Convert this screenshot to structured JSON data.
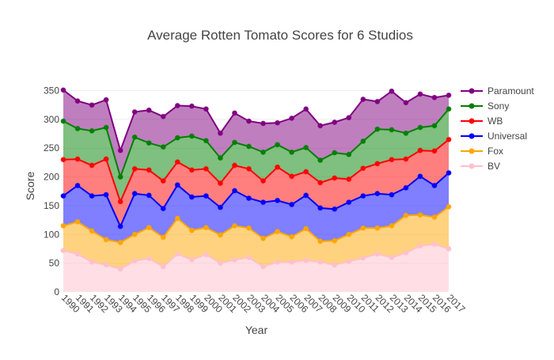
{
  "chart_data": {
    "type": "area",
    "stacked": true,
    "title": "Average Rotten Tomato Scores for 6 Studios",
    "xlabel": "Year",
    "ylabel": "Score",
    "ylim": [
      0,
      370
    ],
    "yticks": [
      0,
      50,
      100,
      150,
      200,
      250,
      300,
      350
    ],
    "grid": true,
    "legend_position": "right",
    "x": [
      "1990",
      "1991",
      "1992",
      "1993",
      "1994",
      "1995",
      "1996",
      "1997",
      "1998",
      "1999",
      "2000",
      "2001",
      "2002",
      "2003",
      "2004",
      "2005",
      "2006",
      "2007",
      "2008",
      "2009",
      "2010",
      "2011",
      "2012",
      "2013",
      "2014",
      "2015",
      "2016",
      "2017"
    ],
    "series": [
      {
        "name": "BV",
        "color": "#ffc0cb",
        "values": [
          72,
          66,
          52,
          47,
          40,
          54,
          58,
          44,
          66,
          56,
          65,
          50,
          56,
          60,
          44,
          52,
          52,
          55,
          52,
          47,
          53,
          59,
          66,
          60,
          68,
          80,
          83,
          75
        ]
      },
      {
        "name": "Fox",
        "color": "#ffa500",
        "values": [
          43,
          56,
          54,
          44,
          46,
          46,
          54,
          51,
          62,
          51,
          47,
          49,
          59,
          51,
          49,
          53,
          44,
          55,
          36,
          42,
          47,
          52,
          45,
          55,
          65,
          54,
          47,
          73
        ]
      },
      {
        "name": "Universal",
        "color": "#0000ff",
        "values": [
          52,
          63,
          61,
          78,
          28,
          71,
          56,
          50,
          58,
          58,
          55,
          48,
          61,
          52,
          63,
          54,
          56,
          58,
          58,
          55,
          56,
          56,
          60,
          54,
          48,
          67,
          55,
          59
        ]
      },
      {
        "name": "WB",
        "color": "#ff0000",
        "values": [
          63,
          46,
          53,
          62,
          43,
          43,
          44,
          48,
          40,
          47,
          47,
          42,
          44,
          51,
          37,
          58,
          49,
          41,
          44,
          54,
          40,
          48,
          52,
          61,
          50,
          45,
          60,
          58
        ]
      },
      {
        "name": "Sony",
        "color": "#008000",
        "values": [
          67,
          53,
          60,
          55,
          43,
          55,
          47,
          59,
          42,
          59,
          49,
          44,
          40,
          39,
          50,
          39,
          42,
          42,
          39,
          44,
          43,
          47,
          60,
          52,
          45,
          40,
          44,
          53
        ]
      },
      {
        "name": "Paramount",
        "color": "#800080",
        "values": [
          54,
          48,
          45,
          48,
          46,
          44,
          57,
          53,
          56,
          52,
          55,
          43,
          51,
          44,
          50,
          38,
          59,
          67,
          60,
          53,
          64,
          73,
          48,
          67,
          53,
          58,
          49,
          24
        ]
      }
    ]
  }
}
